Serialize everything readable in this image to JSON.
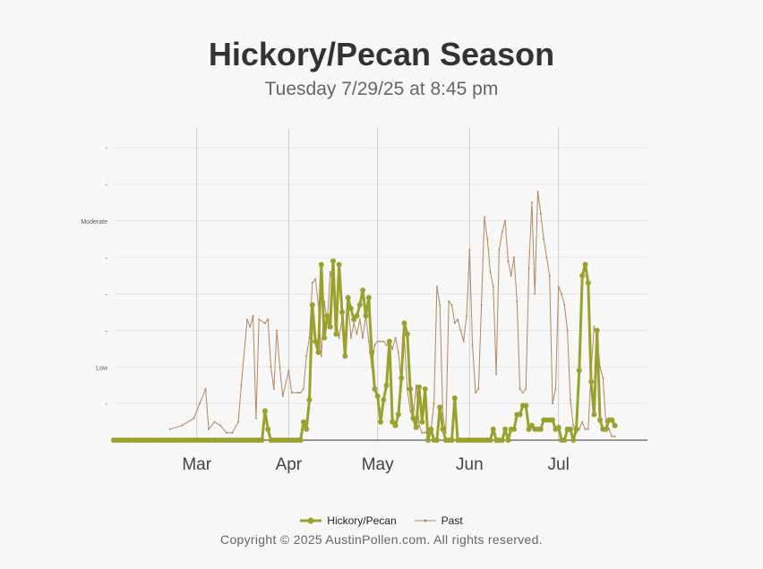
{
  "header": {
    "title": "Hickory/Pecan Season",
    "subtitle": "Tuesday 7/29/25 at 8:45 pm"
  },
  "footer": {
    "copyright": "Copyright © 2025 AustinPollen.com.  All rights reserved."
  },
  "colors": {
    "current": "#9aa22e",
    "past": "#b08860",
    "grid": "#e6e6e6",
    "month_line": "#cccccc",
    "axis": "#333333"
  },
  "chart_data": {
    "type": "line",
    "x_unit": "date (2025)",
    "x_range": [
      "2025-02-01",
      "2025-07-31"
    ],
    "y_range": [
      0,
      8
    ],
    "y_ticks": [
      {
        "value": 1,
        "label": "-"
      },
      {
        "value": 2,
        "label": "Low"
      },
      {
        "value": 3,
        "label": "-"
      },
      {
        "value": 4,
        "label": "-"
      },
      {
        "value": 5,
        "label": "-"
      },
      {
        "value": 6,
        "label": "Moderate"
      },
      {
        "value": 7,
        "label": "-"
      },
      {
        "value": 8,
        "label": "-"
      }
    ],
    "x_ticks": [
      {
        "date": "2025-03-01",
        "label": "Mar"
      },
      {
        "date": "2025-04-01",
        "label": "Apr"
      },
      {
        "date": "2025-05-01",
        "label": "May"
      },
      {
        "date": "2025-06-01",
        "label": "Jun"
      },
      {
        "date": "2025-07-01",
        "label": "Jul"
      }
    ],
    "legend": "bottom",
    "series": [
      {
        "name": "Hickory/Pecan",
        "points": [
          [
            "2025-02-01",
            0
          ],
          [
            "2025-03-12",
            0
          ],
          [
            "2025-03-23",
            0
          ],
          [
            "2025-03-24",
            0.8
          ],
          [
            "2025-03-25",
            0.3
          ],
          [
            "2025-03-26",
            0
          ],
          [
            "2025-04-05",
            0
          ],
          [
            "2025-04-06",
            0.5
          ],
          [
            "2025-04-07",
            0.3
          ],
          [
            "2025-04-08",
            1.1
          ],
          [
            "2025-04-09",
            3.7
          ],
          [
            "2025-04-10",
            2.7
          ],
          [
            "2025-04-11",
            2.4
          ],
          [
            "2025-04-12",
            4.8
          ],
          [
            "2025-04-13",
            2.8
          ],
          [
            "2025-04-14",
            3.4
          ],
          [
            "2025-04-15",
            3.1
          ],
          [
            "2025-04-16",
            4.9
          ],
          [
            "2025-04-17",
            2.9
          ],
          [
            "2025-04-18",
            4.8
          ],
          [
            "2025-04-19",
            3.5
          ],
          [
            "2025-04-20",
            2.3
          ],
          [
            "2025-04-21",
            3.9
          ],
          [
            "2025-04-22",
            3.6
          ],
          [
            "2025-04-23",
            3.3
          ],
          [
            "2025-04-24",
            3.4
          ],
          [
            "2025-04-25",
            3.7
          ],
          [
            "2025-04-26",
            4.1
          ],
          [
            "2025-04-27",
            3.4
          ],
          [
            "2025-04-28",
            3.9
          ],
          [
            "2025-04-29",
            2.4
          ],
          [
            "2025-04-30",
            1.4
          ],
          [
            "2025-05-01",
            1.2
          ],
          [
            "2025-05-02",
            0.5
          ],
          [
            "2025-05-03",
            1.1
          ],
          [
            "2025-05-04",
            1.5
          ],
          [
            "2025-05-05",
            2.7
          ],
          [
            "2025-05-06",
            0.5
          ],
          [
            "2025-05-07",
            0.4
          ],
          [
            "2025-05-08",
            0.7
          ],
          [
            "2025-05-09",
            1.7
          ],
          [
            "2025-05-10",
            3.2
          ],
          [
            "2025-05-11",
            2.9
          ],
          [
            "2025-05-12",
            1.4
          ],
          [
            "2025-05-13",
            0.6
          ],
          [
            "2025-05-14",
            0.35
          ],
          [
            "2025-05-15",
            1.45
          ],
          [
            "2025-05-16",
            0.5
          ],
          [
            "2025-05-17",
            1.4
          ],
          [
            "2025-05-18",
            0
          ],
          [
            "2025-05-19",
            0.3
          ],
          [
            "2025-05-20",
            0
          ],
          [
            "2025-05-21",
            0
          ],
          [
            "2025-05-22",
            0.9
          ],
          [
            "2025-05-23",
            0.3
          ],
          [
            "2025-05-24",
            0
          ],
          [
            "2025-05-25",
            0
          ],
          [
            "2025-05-26",
            0
          ],
          [
            "2025-05-27",
            1.15
          ],
          [
            "2025-05-28",
            0
          ],
          [
            "2025-06-08",
            0
          ],
          [
            "2025-06-09",
            0.3
          ],
          [
            "2025-06-10",
            0
          ],
          [
            "2025-06-12",
            0
          ],
          [
            "2025-06-13",
            0.3
          ],
          [
            "2025-06-14",
            0
          ],
          [
            "2025-06-15",
            0.3
          ],
          [
            "2025-06-16",
            0.3
          ],
          [
            "2025-06-17",
            0.7
          ],
          [
            "2025-06-18",
            0.7
          ],
          [
            "2025-06-19",
            0.95
          ],
          [
            "2025-06-20",
            0.95
          ],
          [
            "2025-06-21",
            0.3
          ],
          [
            "2025-06-22",
            0.4
          ],
          [
            "2025-06-23",
            0.3
          ],
          [
            "2025-06-24",
            0.3
          ],
          [
            "2025-06-25",
            0.3
          ],
          [
            "2025-06-26",
            0.55
          ],
          [
            "2025-06-27",
            0.55
          ],
          [
            "2025-06-28",
            0.55
          ],
          [
            "2025-06-29",
            0.55
          ],
          [
            "2025-06-30",
            0.3
          ],
          [
            "2025-07-01",
            0.35
          ],
          [
            "2025-07-02",
            0
          ],
          [
            "2025-07-03",
            0
          ],
          [
            "2025-07-04",
            0.3
          ],
          [
            "2025-07-05",
            0.3
          ],
          [
            "2025-07-06",
            0
          ],
          [
            "2025-07-07",
            0.3
          ],
          [
            "2025-07-08",
            1.9
          ],
          [
            "2025-07-09",
            4.5
          ],
          [
            "2025-07-10",
            4.8
          ],
          [
            "2025-07-11",
            4.3
          ],
          [
            "2025-07-12",
            1.6
          ],
          [
            "2025-07-13",
            0.7
          ],
          [
            "2025-07-14",
            3.0
          ],
          [
            "2025-07-15",
            0.55
          ],
          [
            "2025-07-16",
            0.3
          ],
          [
            "2025-07-17",
            0.3
          ],
          [
            "2025-07-18",
            0.55
          ],
          [
            "2025-07-19",
            0.55
          ],
          [
            "2025-07-20",
            0.4
          ]
        ]
      },
      {
        "name": "Past",
        "points": [
          [
            "2025-02-20",
            0.3
          ],
          [
            "2025-02-24",
            0.4
          ],
          [
            "2025-02-28",
            0.6
          ],
          [
            "2025-03-02",
            1
          ],
          [
            "2025-03-04",
            1.4
          ],
          [
            "2025-03-05",
            0.3
          ],
          [
            "2025-03-07",
            0.5
          ],
          [
            "2025-03-09",
            0.4
          ],
          [
            "2025-03-11",
            0.2
          ],
          [
            "2025-03-13",
            0.2
          ],
          [
            "2025-03-15",
            0.5
          ],
          [
            "2025-03-16",
            1.5
          ],
          [
            "2025-03-18",
            3.3
          ],
          [
            "2025-03-19",
            3.1
          ],
          [
            "2025-03-20",
            3.4
          ],
          [
            "2025-03-21",
            0.6
          ],
          [
            "2025-03-22",
            3.3
          ],
          [
            "2025-03-24",
            3.2
          ],
          [
            "2025-03-25",
            3.3
          ],
          [
            "2025-03-26",
            2.0
          ],
          [
            "2025-03-27",
            1.4
          ],
          [
            "2025-03-28",
            3.0
          ],
          [
            "2025-03-29",
            2.0
          ],
          [
            "2025-03-30",
            1.2
          ],
          [
            "2025-04-01",
            1.9
          ],
          [
            "2025-04-02",
            1.3
          ],
          [
            "2025-04-04",
            1.3
          ],
          [
            "2025-04-05",
            1.3
          ],
          [
            "2025-04-06",
            1.4
          ],
          [
            "2025-04-07",
            2.3
          ],
          [
            "2025-04-08",
            2.8
          ],
          [
            "2025-04-09",
            4.3
          ],
          [
            "2025-04-10",
            4.4
          ],
          [
            "2025-04-11",
            3.7
          ],
          [
            "2025-04-12",
            2.3
          ],
          [
            "2025-04-13",
            3.8
          ],
          [
            "2025-04-14",
            3.2
          ],
          [
            "2025-04-15",
            4.6
          ],
          [
            "2025-04-16",
            4.3
          ],
          [
            "2025-04-17",
            3.3
          ],
          [
            "2025-04-18",
            2.8
          ],
          [
            "2025-04-19",
            3.3
          ],
          [
            "2025-04-20",
            2.4
          ],
          [
            "2025-04-21",
            3.8
          ],
          [
            "2025-04-22",
            2.8
          ],
          [
            "2025-04-23",
            3.2
          ],
          [
            "2025-04-24",
            2.9
          ],
          [
            "2025-04-25",
            3.3
          ],
          [
            "2025-04-26",
            2.8
          ],
          [
            "2025-04-27",
            3.4
          ],
          [
            "2025-04-28",
            2.7
          ],
          [
            "2025-04-29",
            2.0
          ],
          [
            "2025-04-30",
            2.6
          ],
          [
            "2025-05-01",
            2.7
          ],
          [
            "2025-05-02",
            2.7
          ],
          [
            "2025-05-03",
            2.7
          ],
          [
            "2025-05-04",
            2.6
          ],
          [
            "2025-05-05",
            2.7
          ],
          [
            "2025-05-06",
            2.5
          ],
          [
            "2025-05-07",
            2.8
          ],
          [
            "2025-05-08",
            2.4
          ],
          [
            "2025-05-09",
            1.5
          ],
          [
            "2025-05-10",
            2.8
          ],
          [
            "2025-05-11",
            1.4
          ],
          [
            "2025-05-12",
            0.8
          ],
          [
            "2025-05-13",
            0.6
          ],
          [
            "2025-05-14",
            1.5
          ],
          [
            "2025-05-15",
            0.4
          ],
          [
            "2025-05-16",
            0.2
          ],
          [
            "2025-05-17",
            0.2
          ],
          [
            "2025-05-18",
            0.3
          ],
          [
            "2025-05-19",
            0.3
          ],
          [
            "2025-05-20",
            1.0
          ],
          [
            "2025-05-21",
            4.2
          ],
          [
            "2025-05-22",
            3.7
          ],
          [
            "2025-05-23",
            0.7
          ],
          [
            "2025-05-24",
            0.2
          ],
          [
            "2025-05-25",
            3.8
          ],
          [
            "2025-05-26",
            3.7
          ],
          [
            "2025-05-27",
            3.2
          ],
          [
            "2025-05-28",
            3.3
          ],
          [
            "2025-05-29",
            3.0
          ],
          [
            "2025-05-30",
            2.7
          ],
          [
            "2025-05-31",
            3.4
          ],
          [
            "2025-06-01",
            5.2
          ],
          [
            "2025-06-02",
            2.6
          ],
          [
            "2025-06-03",
            1.3
          ],
          [
            "2025-06-04",
            1.4
          ],
          [
            "2025-06-05",
            3.7
          ],
          [
            "2025-06-06",
            6.1
          ],
          [
            "2025-06-07",
            5.5
          ],
          [
            "2025-06-08",
            4.6
          ],
          [
            "2025-06-09",
            4.2
          ],
          [
            "2025-06-10",
            1.8
          ],
          [
            "2025-06-11",
            5.2
          ],
          [
            "2025-06-12",
            5.7
          ],
          [
            "2025-06-13",
            6.0
          ],
          [
            "2025-06-14",
            4.9
          ],
          [
            "2025-06-15",
            4.5
          ],
          [
            "2025-06-16",
            5.0
          ],
          [
            "2025-06-17",
            3.8
          ],
          [
            "2025-06-18",
            1.4
          ],
          [
            "2025-06-19",
            1.3
          ],
          [
            "2025-06-20",
            1.4
          ],
          [
            "2025-06-21",
            4.7
          ],
          [
            "2025-06-22",
            6.5
          ],
          [
            "2025-06-23",
            4.0
          ],
          [
            "2025-06-24",
            6.8
          ],
          [
            "2025-06-25",
            6.2
          ],
          [
            "2025-06-26",
            5.5
          ],
          [
            "2025-06-27",
            5.0
          ],
          [
            "2025-06-28",
            4.5
          ],
          [
            "2025-06-29",
            1.0
          ],
          [
            "2025-06-30",
            1.4
          ],
          [
            "2025-07-01",
            4.2
          ],
          [
            "2025-07-02",
            4.0
          ],
          [
            "2025-07-03",
            3.7
          ],
          [
            "2025-07-04",
            3.0
          ],
          [
            "2025-07-05",
            1.1
          ],
          [
            "2025-07-06",
            0.4
          ],
          [
            "2025-07-07",
            0.2
          ],
          [
            "2025-07-08",
            0.3
          ],
          [
            "2025-07-09",
            0.5
          ],
          [
            "2025-07-10",
            0.3
          ],
          [
            "2025-07-11",
            0.3
          ],
          [
            "2025-07-12",
            1.9
          ],
          [
            "2025-07-13",
            3.1
          ],
          [
            "2025-07-14",
            2.8
          ],
          [
            "2025-07-15",
            2.0
          ],
          [
            "2025-07-16",
            1.7
          ],
          [
            "2025-07-17",
            0.5
          ],
          [
            "2025-07-18",
            0.3
          ],
          [
            "2025-07-19",
            0.1
          ],
          [
            "2025-07-20",
            0.1
          ]
        ]
      }
    ]
  }
}
